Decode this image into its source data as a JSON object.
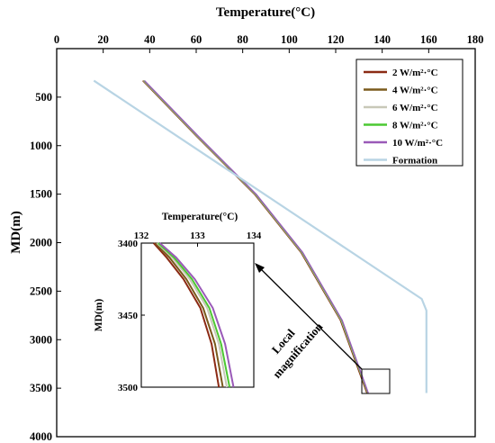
{
  "chart_data": [
    {
      "type": "line",
      "title": "",
      "xlabel": "Temperature(°C)",
      "ylabel": "MD(m)",
      "x_axis_position": "top",
      "y_inverted": true,
      "xlim": [
        0,
        180
      ],
      "ylim": [
        4000,
        0
      ],
      "xticks": [
        "0",
        "20",
        "40",
        "60",
        "80",
        "100",
        "120",
        "140",
        "160",
        "180"
      ],
      "yticks": [
        "500",
        "1000",
        "1500",
        "2000",
        "2500",
        "3000",
        "3500",
        "4000"
      ],
      "grid": false,
      "legend_position": "top-right",
      "series": [
        {
          "name": "2 W/m²·°C",
          "color": "#8B2A14",
          "x": [
            37,
            60,
            85,
            105,
            122,
            133.4
          ],
          "y": [
            330,
            900,
            1500,
            2100,
            2800,
            3550
          ]
        },
        {
          "name": "4 W/m²·°C",
          "color": "#7A5A1C",
          "x": [
            37.2,
            60.2,
            85.2,
            105.2,
            122.2,
            133.6
          ],
          "y": [
            330,
            900,
            1500,
            2100,
            2800,
            3550
          ]
        },
        {
          "name": "6 W/m²·°C",
          "color": "#C8C8B8",
          "x": [
            37.4,
            60.4,
            85.4,
            105.4,
            122.4,
            133.8
          ],
          "y": [
            330,
            900,
            1500,
            2100,
            2800,
            3550
          ]
        },
        {
          "name": "8 W/m²·°C",
          "color": "#4CC832",
          "x": [
            37.6,
            60.6,
            85.6,
            105.6,
            122.6,
            133.9
          ],
          "y": [
            330,
            900,
            1500,
            2100,
            2800,
            3550
          ]
        },
        {
          "name": "10 W/m²·°C",
          "color": "#9A5AB8",
          "x": [
            37.8,
            60.8,
            85.8,
            105.8,
            122.8,
            134.0
          ],
          "y": [
            330,
            900,
            1500,
            2100,
            2800,
            3550
          ]
        },
        {
          "name": "Formation",
          "color": "#B8D4E4",
          "x": [
            16,
            157,
            159,
            159
          ],
          "y": [
            330,
            2580,
            2700,
            3550
          ]
        }
      ],
      "annotation": [
        "Local",
        "magnification"
      ]
    },
    {
      "type": "line",
      "title": "",
      "xlabel": "Temperature(°C)",
      "ylabel": "MD(m)",
      "x_axis_position": "top",
      "y_inverted": true,
      "xlim": [
        132,
        134
      ],
      "ylim": [
        3500,
        3400
      ],
      "xticks": [
        "132",
        "133",
        "134"
      ],
      "yticks": [
        "3400",
        "3450",
        "3500"
      ],
      "series": [
        {
          "name": "2 W/m²·°C",
          "color": "#8B2A14",
          "x": [
            132.22,
            132.45,
            132.75,
            133.05,
            133.25,
            133.38
          ],
          "y": [
            3400,
            3410,
            3425,
            3445,
            3470,
            3500
          ]
        },
        {
          "name": "4 W/m²·°C",
          "color": "#7A5A1C",
          "x": [
            132.25,
            132.5,
            132.8,
            133.1,
            133.31,
            133.45
          ],
          "y": [
            3400,
            3410,
            3425,
            3445,
            3470,
            3500
          ]
        },
        {
          "name": "6 W/m²·°C",
          "color": "#C8C8B8",
          "x": [
            132.28,
            132.55,
            132.86,
            133.17,
            133.38,
            133.52
          ],
          "y": [
            3400,
            3410,
            3425,
            3445,
            3470,
            3500
          ]
        },
        {
          "name": "8 W/m²·°C",
          "color": "#4CC832",
          "x": [
            132.3,
            132.58,
            132.9,
            133.21,
            133.42,
            133.57
          ],
          "y": [
            3400,
            3410,
            3425,
            3445,
            3470,
            3500
          ]
        },
        {
          "name": "10 W/m²·°C",
          "color": "#9A5AB8",
          "x": [
            132.33,
            132.62,
            132.95,
            133.27,
            133.49,
            133.64
          ],
          "y": [
            3400,
            3410,
            3425,
            3445,
            3470,
            3500
          ]
        }
      ]
    }
  ]
}
